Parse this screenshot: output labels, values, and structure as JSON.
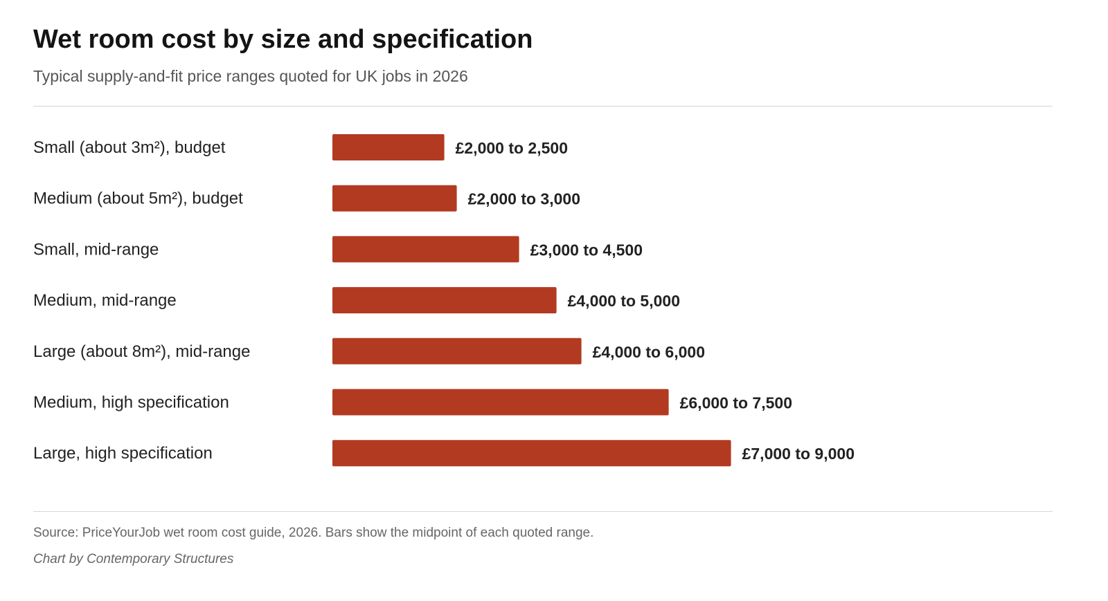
{
  "chart_data": {
    "type": "bar",
    "orientation": "horizontal",
    "title": "Wet room cost by size and specification",
    "subtitle": "Typical supply-and-fit price ranges quoted for UK jobs in 2026",
    "categories": [
      "Small (about 3m²), budget",
      "Medium (about 5m²), budget",
      "Small, mid-range",
      "Medium, mid-range",
      "Large (about 8m²), mid-range",
      "Medium, high specification",
      "Large, high specification"
    ],
    "ranges": [
      [
        2000,
        2500
      ],
      [
        2000,
        3000
      ],
      [
        3000,
        4500
      ],
      [
        4000,
        5000
      ],
      [
        4000,
        6000
      ],
      [
        6000,
        7500
      ],
      [
        7000,
        9000
      ]
    ],
    "values": [
      2250,
      2500,
      3750,
      4500,
      5000,
      6750,
      8000
    ],
    "value_labels": [
      "£2,000 to 2,500",
      "£2,000 to 3,000",
      "£3,000 to 4,500",
      "£4,000 to 5,000",
      "£4,000 to 6,000",
      "£6,000 to 7,500",
      "£7,000 to 9,000"
    ],
    "xlim": [
      0,
      8000
    ],
    "grid": false,
    "bar_color": "#b23a21",
    "source": "Source: PriceYourJob wet room cost guide, 2026. Bars show the midpoint of each quoted range.",
    "credit": "Chart by Contemporary Structures"
  }
}
